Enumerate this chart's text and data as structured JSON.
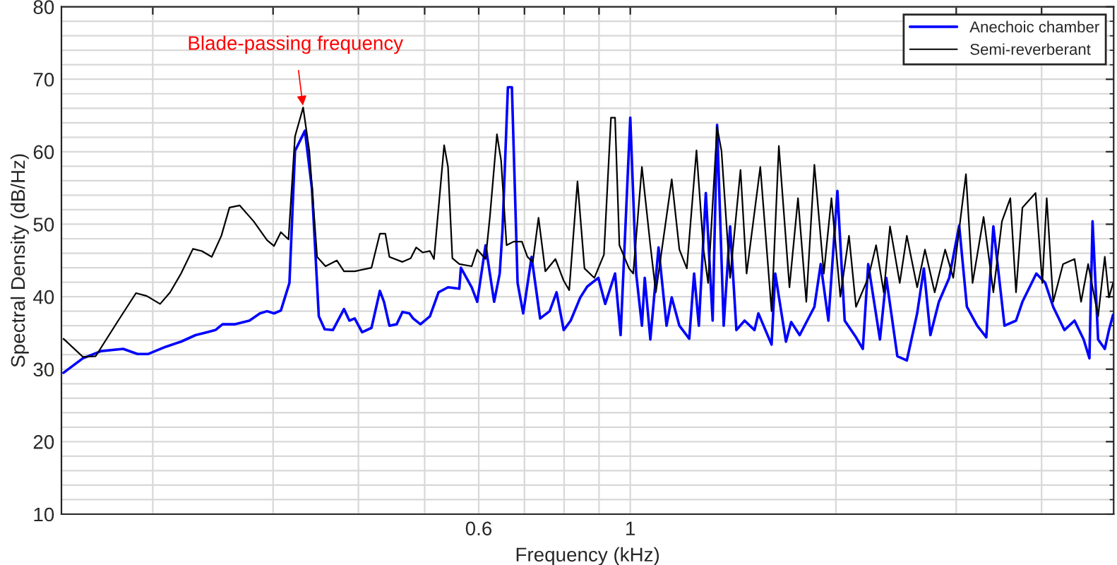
{
  "chart_data": {
    "type": "line",
    "xlabel": "Frequency (kHz)",
    "ylabel": "Spectral Density (dB/Hz)",
    "log": "x",
    "xlim": [
      0.147,
      5.1
    ],
    "ylim": [
      10,
      80
    ],
    "xticks": [
      {
        "value": 0.2,
        "label": null
      },
      {
        "value": 0.3,
        "label": null
      },
      {
        "value": 0.4,
        "label": null
      },
      {
        "value": 0.5,
        "label": null
      },
      0.6,
      {
        "value": 0.7,
        "label": null
      },
      {
        "value": 0.8,
        "label": null
      },
      {
        "value": 0.9,
        "label": null
      },
      1,
      {
        "value": 2,
        "label": null
      },
      {
        "value": 3,
        "label": null
      },
      {
        "value": 4,
        "label": null
      }
    ],
    "yticks": [
      10,
      20,
      30,
      40,
      50,
      60,
      70,
      80
    ],
    "grid": true,
    "legend": "top right",
    "annotations": [
      {
        "text": "Blade-passing frequency",
        "x": 0.332,
        "y": 66.1
      }
    ],
    "series": [
      {
        "name": "Anechoic chamber",
        "color": "#0000ff",
        "x": [
          0.148,
          0.158,
          0.168,
          0.181,
          0.19,
          0.197,
          0.209,
          0.22,
          0.231,
          0.24,
          0.247,
          0.253,
          0.264,
          0.277,
          0.287,
          0.294,
          0.301,
          0.308,
          0.317,
          0.323,
          0.334,
          0.342,
          0.35,
          0.357,
          0.367,
          0.381,
          0.388,
          0.395,
          0.405,
          0.418,
          0.43,
          0.436,
          0.444,
          0.455,
          0.464,
          0.475,
          0.481,
          0.493,
          0.509,
          0.524,
          0.541,
          0.562,
          0.565,
          0.586,
          0.597,
          0.614,
          0.632,
          0.644,
          0.65,
          0.662,
          0.671,
          0.684,
          0.697,
          0.717,
          0.738,
          0.762,
          0.78,
          0.799,
          0.818,
          0.845,
          0.865,
          0.898,
          0.919,
          0.95,
          0.968,
          1.0,
          1.02,
          1.04,
          1.05,
          1.07,
          1.1,
          1.13,
          1.15,
          1.18,
          1.22,
          1.24,
          1.26,
          1.29,
          1.32,
          1.34,
          1.37,
          1.4,
          1.43,
          1.47,
          1.52,
          1.54,
          1.61,
          1.63,
          1.69,
          1.72,
          1.77,
          1.86,
          1.9,
          1.95,
          2.01,
          2.06,
          2.14,
          2.19,
          2.23,
          2.32,
          2.37,
          2.46,
          2.54,
          2.63,
          2.69,
          2.75,
          2.83,
          2.93,
          3.03,
          3.11,
          3.22,
          3.32,
          3.4,
          3.53,
          3.67,
          3.75,
          3.93,
          4.05,
          4.16,
          4.32,
          4.47,
          4.61,
          4.7,
          4.75,
          4.84,
          4.95,
          5.02,
          5.09
        ],
        "values": [
          29.5,
          31.5,
          32.5,
          32.8,
          32.1,
          32.1,
          33.1,
          33.8,
          34.7,
          35.1,
          35.4,
          36.2,
          36.2,
          36.7,
          37.7,
          38.0,
          37.7,
          38.1,
          41.9,
          60.1,
          62.9,
          54.9,
          37.3,
          35.5,
          35.4,
          38.3,
          36.7,
          37.0,
          35.1,
          35.7,
          40.8,
          39.3,
          36.0,
          36.2,
          37.9,
          37.7,
          37.0,
          36.2,
          37.3,
          40.6,
          41.3,
          41.1,
          44.0,
          41.3,
          39.3,
          47.1,
          39.3,
          43.2,
          49.1,
          68.9,
          68.9,
          41.9,
          37.7,
          45.5,
          37.0,
          38.0,
          40.6,
          35.4,
          36.7,
          39.9,
          41.4,
          42.6,
          39.0,
          43.2,
          34.7,
          64.7,
          43.2,
          36.0,
          42.6,
          34.1,
          46.8,
          36.0,
          39.9,
          36.0,
          34.2,
          43.2,
          36.0,
          54.3,
          36.7,
          63.7,
          36.0,
          49.7,
          35.4,
          36.7,
          35.4,
          37.7,
          33.4,
          43.2,
          33.8,
          36.5,
          34.7,
          38.6,
          44.5,
          36.7,
          54.6,
          36.7,
          34.4,
          32.8,
          44.5,
          34.1,
          42.6,
          31.8,
          31.2,
          37.7,
          43.9,
          34.7,
          39.3,
          42.6,
          49.8,
          38.6,
          36.0,
          34.4,
          49.7,
          36.0,
          36.7,
          39.3,
          43.2,
          41.9,
          38.6,
          35.4,
          36.7,
          34.1,
          31.5,
          50.4,
          34.1,
          32.8,
          35.4,
          37.5
        ]
      },
      {
        "name": "Semi-reverberant",
        "color": "#000000",
        "x": [
          0.148,
          0.158,
          0.165,
          0.178,
          0.189,
          0.196,
          0.205,
          0.212,
          0.22,
          0.229,
          0.236,
          0.244,
          0.252,
          0.259,
          0.268,
          0.281,
          0.294,
          0.301,
          0.308,
          0.316,
          0.323,
          0.332,
          0.339,
          0.348,
          0.358,
          0.372,
          0.381,
          0.395,
          0.418,
          0.43,
          0.438,
          0.444,
          0.464,
          0.477,
          0.486,
          0.497,
          0.509,
          0.516,
          0.534,
          0.541,
          0.549,
          0.562,
          0.586,
          0.597,
          0.614,
          0.623,
          0.638,
          0.647,
          0.659,
          0.675,
          0.694,
          0.707,
          0.72,
          0.734,
          0.751,
          0.777,
          0.799,
          0.814,
          0.837,
          0.857,
          0.886,
          0.915,
          0.937,
          0.95,
          0.964,
          0.996,
          1.01,
          1.04,
          1.07,
          1.09,
          1.15,
          1.18,
          1.21,
          1.25,
          1.28,
          1.3,
          1.34,
          1.36,
          1.4,
          1.45,
          1.48,
          1.55,
          1.61,
          1.65,
          1.71,
          1.76,
          1.81,
          1.86,
          1.92,
          1.97,
          2.03,
          2.09,
          2.14,
          2.23,
          2.29,
          2.35,
          2.4,
          2.48,
          2.54,
          2.63,
          2.7,
          2.79,
          2.89,
          2.97,
          3.1,
          3.17,
          3.29,
          3.4,
          3.5,
          3.6,
          3.67,
          3.75,
          3.92,
          4.01,
          4.07,
          4.16,
          4.3,
          4.47,
          4.57,
          4.68,
          4.84,
          4.95,
          5.02,
          5.09
        ],
        "values": [
          34.2,
          31.7,
          31.8,
          36.7,
          40.5,
          40.1,
          39.0,
          40.6,
          43.2,
          46.6,
          46.3,
          45.5,
          48.4,
          52.3,
          52.6,
          50.4,
          47.8,
          47.0,
          48.9,
          47.9,
          62.1,
          66.1,
          60.1,
          45.5,
          44.2,
          45.0,
          43.5,
          43.5,
          44.0,
          48.7,
          48.7,
          45.5,
          44.8,
          45.3,
          46.8,
          46.1,
          46.3,
          45.2,
          60.9,
          57.9,
          45.3,
          44.5,
          44.2,
          46.5,
          45.2,
          51.0,
          62.4,
          58.8,
          47.1,
          47.6,
          47.6,
          45.5,
          44.8,
          50.9,
          43.5,
          45.2,
          42.2,
          40.9,
          55.9,
          43.9,
          42.6,
          45.8,
          64.7,
          64.7,
          47.1,
          43.9,
          43.2,
          57.9,
          47.1,
          40.6,
          56.2,
          46.5,
          43.9,
          60.2,
          46.5,
          41.9,
          63.4,
          60.1,
          42.6,
          57.5,
          43.2,
          57.9,
          38.0,
          60.8,
          41.3,
          53.6,
          39.3,
          58.2,
          43.2,
          53.6,
          40.0,
          48.4,
          38.6,
          42.6,
          47.1,
          40.6,
          49.7,
          41.9,
          48.4,
          41.3,
          46.5,
          40.6,
          46.5,
          42.6,
          56.9,
          41.9,
          51.0,
          40.6,
          50.4,
          53.6,
          40.6,
          52.3,
          54.3,
          41.9,
          53.6,
          39.3,
          44.5,
          45.2,
          39.3,
          44.5,
          37.3,
          45.5,
          39.9,
          41.9
        ]
      }
    ]
  }
}
